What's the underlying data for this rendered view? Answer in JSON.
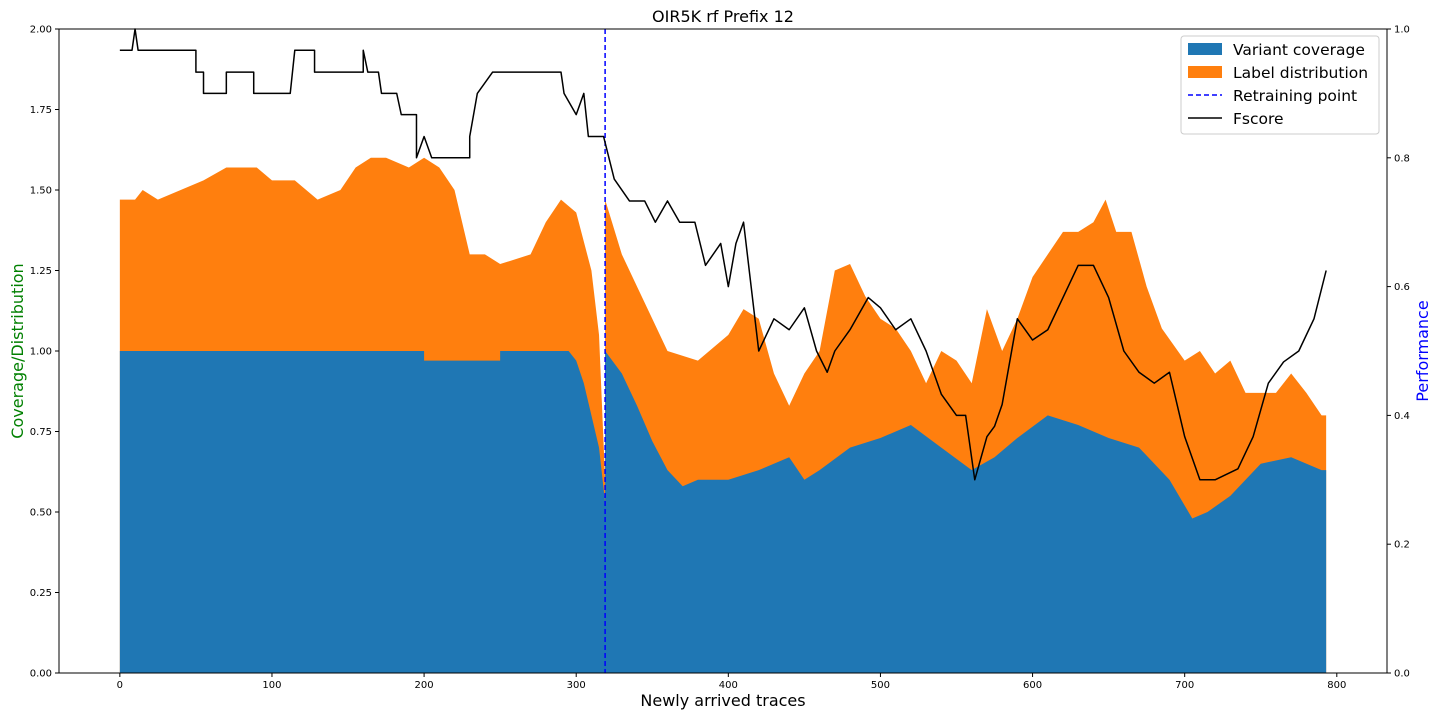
{
  "chart_data": {
    "type": "area",
    "title": "OIR5K rf Prefix 12",
    "xlabel": "Newly arrived traces",
    "ylabel_left": "Coverage/Distribution",
    "ylabel_right": "Performance",
    "xlim": [
      -40,
      833
    ],
    "ylim_left": [
      0,
      2.0
    ],
    "ylim_right": [
      0,
      1.0
    ],
    "x_ticks": [
      0,
      100,
      200,
      300,
      400,
      500,
      600,
      700,
      800
    ],
    "y_ticks_left": [
      "0.00",
      "0.25",
      "0.50",
      "0.75",
      "1.00",
      "1.25",
      "1.50",
      "1.75",
      "2.00"
    ],
    "y_ticks_right": [
      "0.0",
      "0.2",
      "0.4",
      "0.6",
      "0.8",
      "1.0"
    ],
    "grid": false,
    "legend_position": "top-right",
    "colors": {
      "variant": "#1f77b4",
      "label": "#ff7f0e",
      "retrain": "#0000ff",
      "fscore": "#000000",
      "ylabel_left": "#008000",
      "ylabel_right": "#0000ff"
    },
    "retraining_point": 319,
    "series": [
      {
        "name": "Variant coverage",
        "axis": "left",
        "kind": "stacked-area",
        "points": [
          [
            0,
            1.0
          ],
          [
            200,
            1.0
          ],
          [
            200,
            0.97
          ],
          [
            250,
            0.97
          ],
          [
            250,
            1.0
          ],
          [
            295,
            1.0
          ],
          [
            300,
            0.97
          ],
          [
            305,
            0.9
          ],
          [
            310,
            0.8
          ],
          [
            315,
            0.7
          ],
          [
            319,
            0.53
          ],
          [
            319,
            1.0
          ],
          [
            330,
            0.93
          ],
          [
            340,
            0.83
          ],
          [
            350,
            0.72
          ],
          [
            360,
            0.63
          ],
          [
            370,
            0.58
          ],
          [
            380,
            0.6
          ],
          [
            400,
            0.6
          ],
          [
            420,
            0.63
          ],
          [
            440,
            0.67
          ],
          [
            450,
            0.6
          ],
          [
            460,
            0.63
          ],
          [
            480,
            0.7
          ],
          [
            500,
            0.73
          ],
          [
            520,
            0.77
          ],
          [
            540,
            0.7
          ],
          [
            560,
            0.63
          ],
          [
            575,
            0.67
          ],
          [
            590,
            0.73
          ],
          [
            610,
            0.8
          ],
          [
            630,
            0.77
          ],
          [
            650,
            0.73
          ],
          [
            670,
            0.7
          ],
          [
            690,
            0.6
          ],
          [
            705,
            0.48
          ],
          [
            715,
            0.5
          ],
          [
            730,
            0.55
          ],
          [
            750,
            0.65
          ],
          [
            770,
            0.67
          ],
          [
            790,
            0.63
          ],
          [
            793,
            0.63
          ]
        ]
      },
      {
        "name": "Label distribution",
        "axis": "left",
        "kind": "stacked-top",
        "points": [
          [
            0,
            1.47
          ],
          [
            10,
            1.47
          ],
          [
            15,
            1.5
          ],
          [
            25,
            1.47
          ],
          [
            40,
            1.5
          ],
          [
            55,
            1.53
          ],
          [
            70,
            1.57
          ],
          [
            90,
            1.57
          ],
          [
            100,
            1.53
          ],
          [
            115,
            1.53
          ],
          [
            130,
            1.47
          ],
          [
            145,
            1.5
          ],
          [
            155,
            1.57
          ],
          [
            165,
            1.6
          ],
          [
            175,
            1.6
          ],
          [
            190,
            1.57
          ],
          [
            200,
            1.6
          ],
          [
            210,
            1.57
          ],
          [
            220,
            1.5
          ],
          [
            230,
            1.3
          ],
          [
            240,
            1.3
          ],
          [
            250,
            1.27
          ],
          [
            270,
            1.3
          ],
          [
            280,
            1.4
          ],
          [
            290,
            1.47
          ],
          [
            300,
            1.43
          ],
          [
            310,
            1.25
          ],
          [
            315,
            1.05
          ],
          [
            319,
            0.6
          ],
          [
            319,
            1.47
          ],
          [
            330,
            1.3
          ],
          [
            340,
            1.2
          ],
          [
            350,
            1.1
          ],
          [
            360,
            1.0
          ],
          [
            380,
            0.97
          ],
          [
            400,
            1.05
          ],
          [
            410,
            1.13
          ],
          [
            420,
            1.1
          ],
          [
            430,
            0.93
          ],
          [
            440,
            0.83
          ],
          [
            450,
            0.93
          ],
          [
            460,
            1.0
          ],
          [
            470,
            1.25
          ],
          [
            480,
            1.27
          ],
          [
            490,
            1.17
          ],
          [
            500,
            1.1
          ],
          [
            510,
            1.07
          ],
          [
            520,
            1.0
          ],
          [
            530,
            0.9
          ],
          [
            540,
            1.0
          ],
          [
            550,
            0.97
          ],
          [
            560,
            0.9
          ],
          [
            570,
            1.13
          ],
          [
            580,
            1.0
          ],
          [
            590,
            1.1
          ],
          [
            600,
            1.23
          ],
          [
            610,
            1.3
          ],
          [
            620,
            1.37
          ],
          [
            630,
            1.37
          ],
          [
            640,
            1.4
          ],
          [
            648,
            1.47
          ],
          [
            655,
            1.37
          ],
          [
            665,
            1.37
          ],
          [
            675,
            1.2
          ],
          [
            685,
            1.07
          ],
          [
            700,
            0.97
          ],
          [
            710,
            1.0
          ],
          [
            720,
            0.93
          ],
          [
            730,
            0.97
          ],
          [
            740,
            0.87
          ],
          [
            760,
            0.87
          ],
          [
            770,
            0.93
          ],
          [
            780,
            0.87
          ],
          [
            790,
            0.8
          ],
          [
            793,
            0.8
          ]
        ]
      },
      {
        "name": "Fscore",
        "axis": "right",
        "kind": "line",
        "points": [
          [
            0,
            0.967
          ],
          [
            8,
            0.967
          ],
          [
            10,
            1.0
          ],
          [
            12,
            0.967
          ],
          [
            50,
            0.967
          ],
          [
            50,
            0.933
          ],
          [
            55,
            0.933
          ],
          [
            55,
            0.9
          ],
          [
            70,
            0.9
          ],
          [
            70,
            0.933
          ],
          [
            88,
            0.933
          ],
          [
            88,
            0.9
          ],
          [
            112,
            0.9
          ],
          [
            115,
            0.967
          ],
          [
            128,
            0.967
          ],
          [
            128,
            0.933
          ],
          [
            160,
            0.933
          ],
          [
            160,
            0.967
          ],
          [
            163,
            0.933
          ],
          [
            170,
            0.933
          ],
          [
            172,
            0.9
          ],
          [
            182,
            0.9
          ],
          [
            185,
            0.867
          ],
          [
            195,
            0.867
          ],
          [
            195,
            0.8
          ],
          [
            200,
            0.833
          ],
          [
            205,
            0.8
          ],
          [
            230,
            0.8
          ],
          [
            230,
            0.833
          ],
          [
            235,
            0.9
          ],
          [
            245,
            0.933
          ],
          [
            250,
            0.933
          ],
          [
            252,
            0.933
          ],
          [
            290,
            0.933
          ],
          [
            292,
            0.9
          ],
          [
            300,
            0.867
          ],
          [
            305,
            0.9
          ],
          [
            308,
            0.833
          ],
          [
            318,
            0.833
          ],
          [
            325,
            0.767
          ],
          [
            335,
            0.733
          ],
          [
            345,
            0.733
          ],
          [
            352,
            0.7
          ],
          [
            360,
            0.733
          ],
          [
            368,
            0.7
          ],
          [
            378,
            0.7
          ],
          [
            385,
            0.633
          ],
          [
            395,
            0.667
          ],
          [
            400,
            0.6
          ],
          [
            405,
            0.667
          ],
          [
            410,
            0.7
          ],
          [
            415,
            0.6
          ],
          [
            420,
            0.5
          ],
          [
            430,
            0.55
          ],
          [
            440,
            0.533
          ],
          [
            450,
            0.567
          ],
          [
            458,
            0.5
          ],
          [
            465,
            0.467
          ],
          [
            470,
            0.5
          ],
          [
            480,
            0.533
          ],
          [
            492,
            0.583
          ],
          [
            500,
            0.567
          ],
          [
            510,
            0.533
          ],
          [
            520,
            0.55
          ],
          [
            530,
            0.5
          ],
          [
            540,
            0.433
          ],
          [
            550,
            0.4
          ],
          [
            556,
            0.4
          ],
          [
            562,
            0.3
          ],
          [
            570,
            0.367
          ],
          [
            575,
            0.383
          ],
          [
            580,
            0.417
          ],
          [
            590,
            0.55
          ],
          [
            600,
            0.517
          ],
          [
            610,
            0.533
          ],
          [
            620,
            0.583
          ],
          [
            630,
            0.633
          ],
          [
            640,
            0.633
          ],
          [
            650,
            0.583
          ],
          [
            660,
            0.5
          ],
          [
            670,
            0.467
          ],
          [
            680,
            0.45
          ],
          [
            690,
            0.467
          ],
          [
            700,
            0.367
          ],
          [
            710,
            0.3
          ],
          [
            720,
            0.3
          ],
          [
            735,
            0.317
          ],
          [
            745,
            0.367
          ],
          [
            755,
            0.45
          ],
          [
            765,
            0.483
          ],
          [
            775,
            0.5
          ],
          [
            785,
            0.55
          ],
          [
            793,
            0.625
          ]
        ]
      }
    ],
    "legend": {
      "variant": "Variant coverage",
      "label": "Label distribution",
      "retrain": "Retraining point",
      "fscore": "Fscore"
    }
  }
}
